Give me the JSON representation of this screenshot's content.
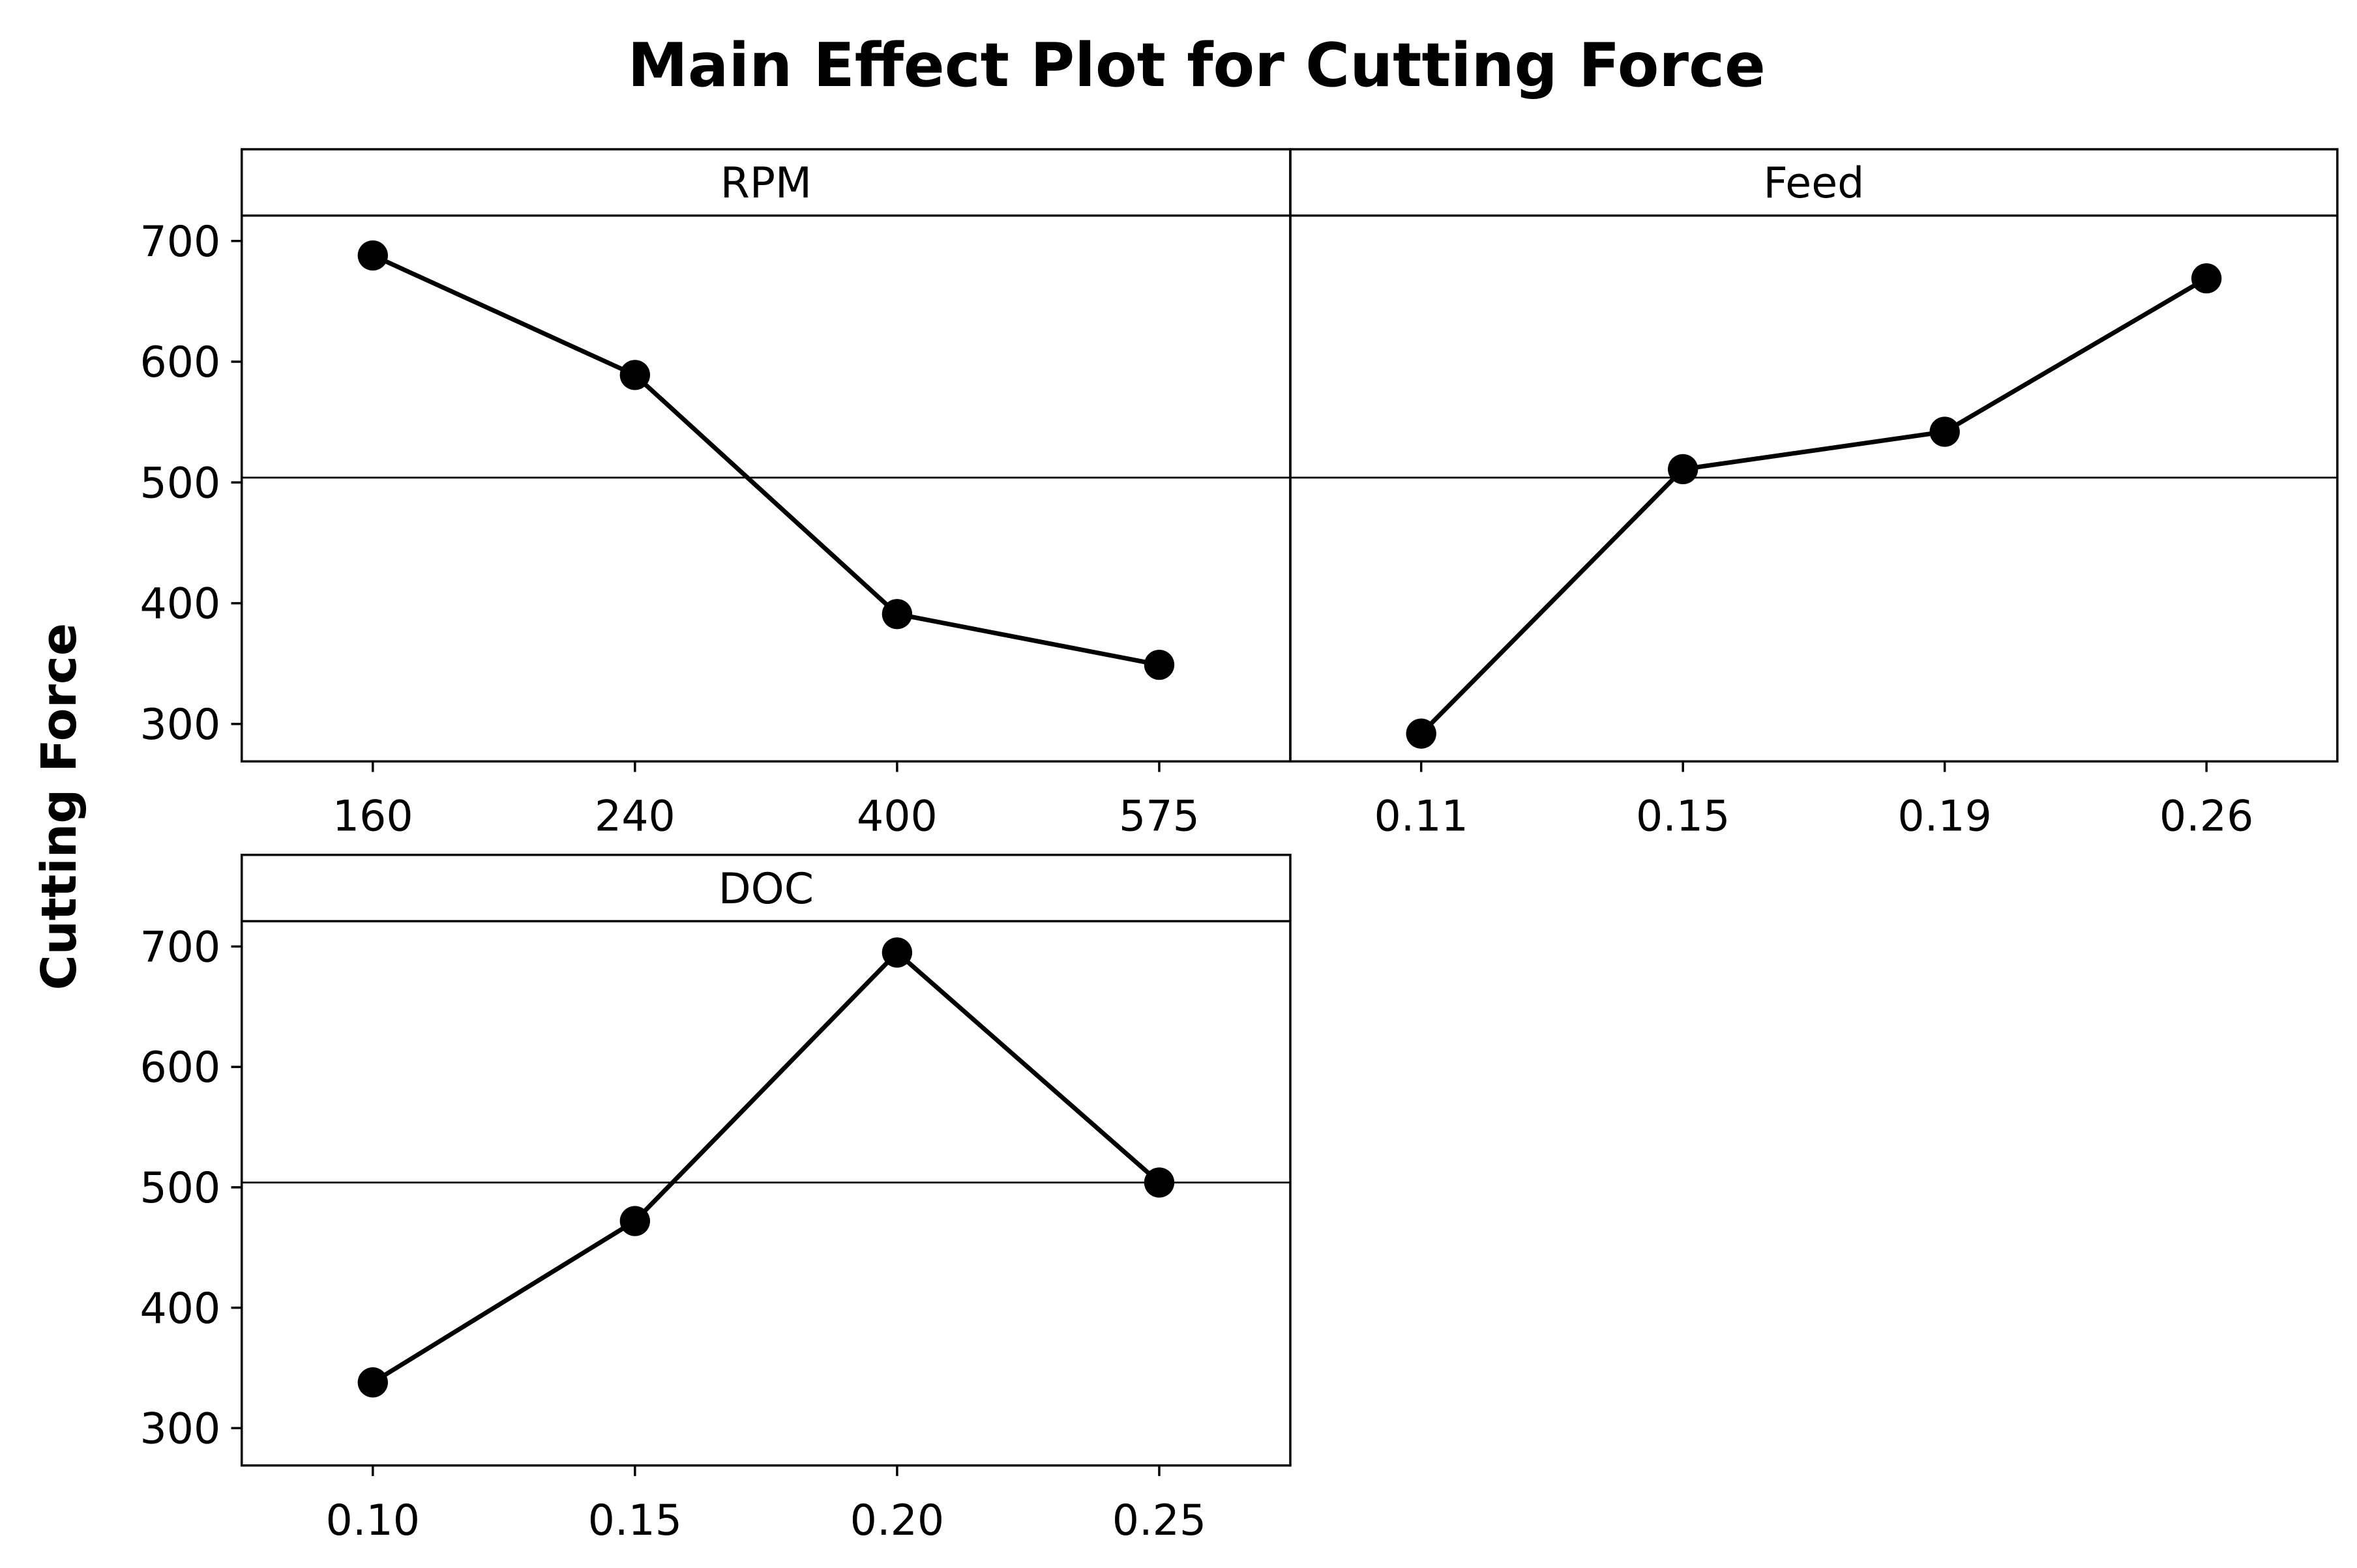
{
  "chart_data": {
    "type": "line",
    "title": "Main Effect Plot for Cutting Force",
    "ylabel": "Cutting Force",
    "ylim": [
      269,
      721
    ],
    "yticks": [
      300,
      400,
      500,
      600,
      700
    ],
    "mean_line": 504,
    "grid": false,
    "marker": "filled-circle",
    "panels": [
      {
        "name": "RPM",
        "categories": [
          "160",
          "240",
          "400",
          "575"
        ],
        "values": [
          688,
          589,
          391,
          349
        ]
      },
      {
        "name": "Feed",
        "categories": [
          "0.11",
          "0.15",
          "0.19",
          "0.26"
        ],
        "values": [
          292,
          511,
          542,
          669
        ]
      },
      {
        "name": "DOC",
        "categories": [
          "0.10",
          "0.15",
          "0.20",
          "0.25"
        ],
        "values": [
          338,
          472,
          695,
          504
        ]
      }
    ]
  }
}
